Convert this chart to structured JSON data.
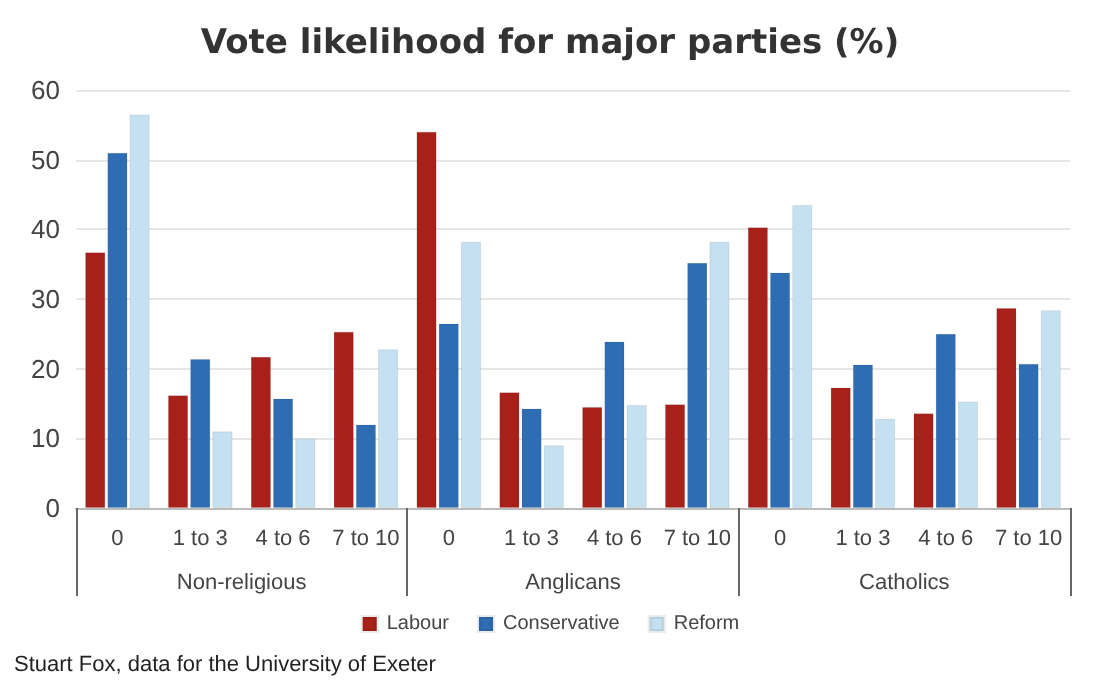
{
  "chart_data": {
    "type": "bar",
    "title": "Vote likelihood for major parties (%)",
    "categories": [
      "0",
      "1 to 3",
      "4 to 6",
      "7 to 10",
      "0",
      "1 to 3",
      "4 to 6",
      "7 to 10",
      "0",
      "1 to 3",
      "4 to 6",
      "7 to 10"
    ],
    "series": [
      {
        "name": "Labour",
        "color": "#a8201a",
        "values": [
          36.7,
          16.2,
          21.7,
          25.3,
          54,
          16.6,
          14.5,
          14.9,
          40.3,
          17.3,
          13.6,
          28.7
        ]
      },
      {
        "name": "Conservative",
        "color": "#2e6db4",
        "values": [
          51,
          21.4,
          15.7,
          12,
          26.5,
          14.3,
          23.9,
          35.2,
          33.8,
          20.6,
          25,
          20.7
        ]
      },
      {
        "name": "Reform",
        "color": "#c5e0f0",
        "values": [
          56.5,
          11,
          10,
          22.8,
          38.2,
          9,
          14.8,
          38.2,
          43.5,
          12.8,
          15.3,
          28.4
        ]
      }
    ],
    "ylim": [
      0,
      60
    ],
    "yticks": [
      0,
      10,
      20,
      30,
      40,
      50,
      60
    ],
    "grid": "y",
    "legend": "bottom",
    "annotations": [
      "Non-religious",
      "Anglicans",
      "Catholics",
      "Stuart Fox, data for the University of Exeter"
    ]
  }
}
